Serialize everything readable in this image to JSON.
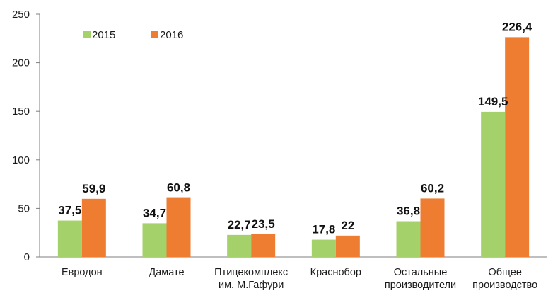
{
  "chart_data": {
    "type": "bar",
    "categories": [
      [
        "Евродон"
      ],
      [
        "Дамате"
      ],
      [
        "Птицекомплекс",
        "им. М.Гафури"
      ],
      [
        "Краснобор"
      ],
      [
        "Остальные",
        "производители"
      ],
      [
        "Общее",
        "производство"
      ]
    ],
    "series": [
      {
        "name": "2015",
        "color": "#a4d16a",
        "values": [
          37.5,
          34.7,
          22.7,
          17.8,
          36.8,
          149.5
        ],
        "labels": [
          "37,5",
          "34,7",
          "22,7",
          "17,8",
          "36,8",
          "149,5"
        ]
      },
      {
        "name": "2016",
        "color": "#ee7d31",
        "values": [
          59.9,
          60.8,
          23.5,
          22,
          60.2,
          226.4
        ],
        "labels": [
          "59,9",
          "60,8",
          "23,5",
          "22",
          "60,2",
          "226,4"
        ]
      }
    ],
    "ylim": [
      0,
      250
    ],
    "yticks": [
      0,
      50,
      100,
      150,
      200,
      250
    ],
    "grid": false,
    "legend_position": "top-left"
  }
}
